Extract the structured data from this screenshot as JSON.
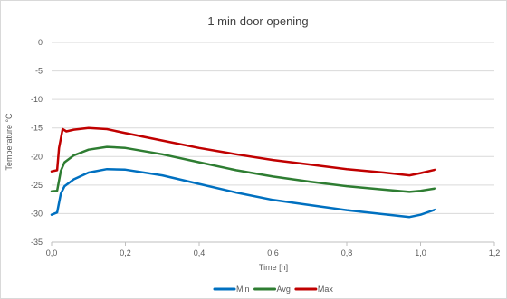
{
  "chart_data": {
    "type": "line",
    "title": "1 min door opening",
    "xlabel": "Time [h]",
    "ylabel": "Temperature °C",
    "xlim": [
      0,
      1.2
    ],
    "ylim": [
      -35,
      0
    ],
    "x_ticks": [
      "0,0",
      "0,2",
      "0,4",
      "0,6",
      "0,8",
      "1,0",
      "1,2"
    ],
    "y_ticks": [
      "0",
      "-5",
      "-10",
      "-15",
      "-20",
      "-25",
      "-30",
      "-35"
    ],
    "grid": "horizontal",
    "legend_position": "bottom",
    "series": [
      {
        "name": "Min",
        "color": "#0070C0",
        "points": [
          [
            0.0,
            -30.2
          ],
          [
            0.015,
            -29.8
          ],
          [
            0.025,
            -26.5
          ],
          [
            0.035,
            -25.2
          ],
          [
            0.06,
            -24.0
          ],
          [
            0.1,
            -22.8
          ],
          [
            0.15,
            -22.2
          ],
          [
            0.2,
            -22.3
          ],
          [
            0.3,
            -23.3
          ],
          [
            0.4,
            -24.8
          ],
          [
            0.5,
            -26.3
          ],
          [
            0.6,
            -27.6
          ],
          [
            0.7,
            -28.5
          ],
          [
            0.8,
            -29.4
          ],
          [
            0.9,
            -30.1
          ],
          [
            0.97,
            -30.6
          ],
          [
            1.0,
            -30.2
          ],
          [
            1.04,
            -29.3
          ]
        ]
      },
      {
        "name": "Avg",
        "color": "#2E7D32",
        "points": [
          [
            0.0,
            -26.1
          ],
          [
            0.015,
            -26.0
          ],
          [
            0.025,
            -22.5
          ],
          [
            0.035,
            -21.0
          ],
          [
            0.06,
            -19.8
          ],
          [
            0.1,
            -18.8
          ],
          [
            0.15,
            -18.3
          ],
          [
            0.2,
            -18.5
          ],
          [
            0.3,
            -19.6
          ],
          [
            0.4,
            -21.0
          ],
          [
            0.5,
            -22.4
          ],
          [
            0.6,
            -23.5
          ],
          [
            0.7,
            -24.4
          ],
          [
            0.8,
            -25.2
          ],
          [
            0.9,
            -25.8
          ],
          [
            0.97,
            -26.2
          ],
          [
            1.0,
            -26.0
          ],
          [
            1.04,
            -25.6
          ]
        ]
      },
      {
        "name": "Max",
        "color": "#C00000",
        "points": [
          [
            0.0,
            -22.6
          ],
          [
            0.015,
            -22.4
          ],
          [
            0.02,
            -18.5
          ],
          [
            0.03,
            -15.2
          ],
          [
            0.04,
            -15.6
          ],
          [
            0.06,
            -15.3
          ],
          [
            0.1,
            -15.0
          ],
          [
            0.15,
            -15.2
          ],
          [
            0.2,
            -15.9
          ],
          [
            0.3,
            -17.2
          ],
          [
            0.4,
            -18.5
          ],
          [
            0.5,
            -19.6
          ],
          [
            0.6,
            -20.6
          ],
          [
            0.7,
            -21.4
          ],
          [
            0.8,
            -22.2
          ],
          [
            0.9,
            -22.8
          ],
          [
            0.97,
            -23.3
          ],
          [
            1.0,
            -22.9
          ],
          [
            1.04,
            -22.3
          ]
        ]
      }
    ]
  }
}
